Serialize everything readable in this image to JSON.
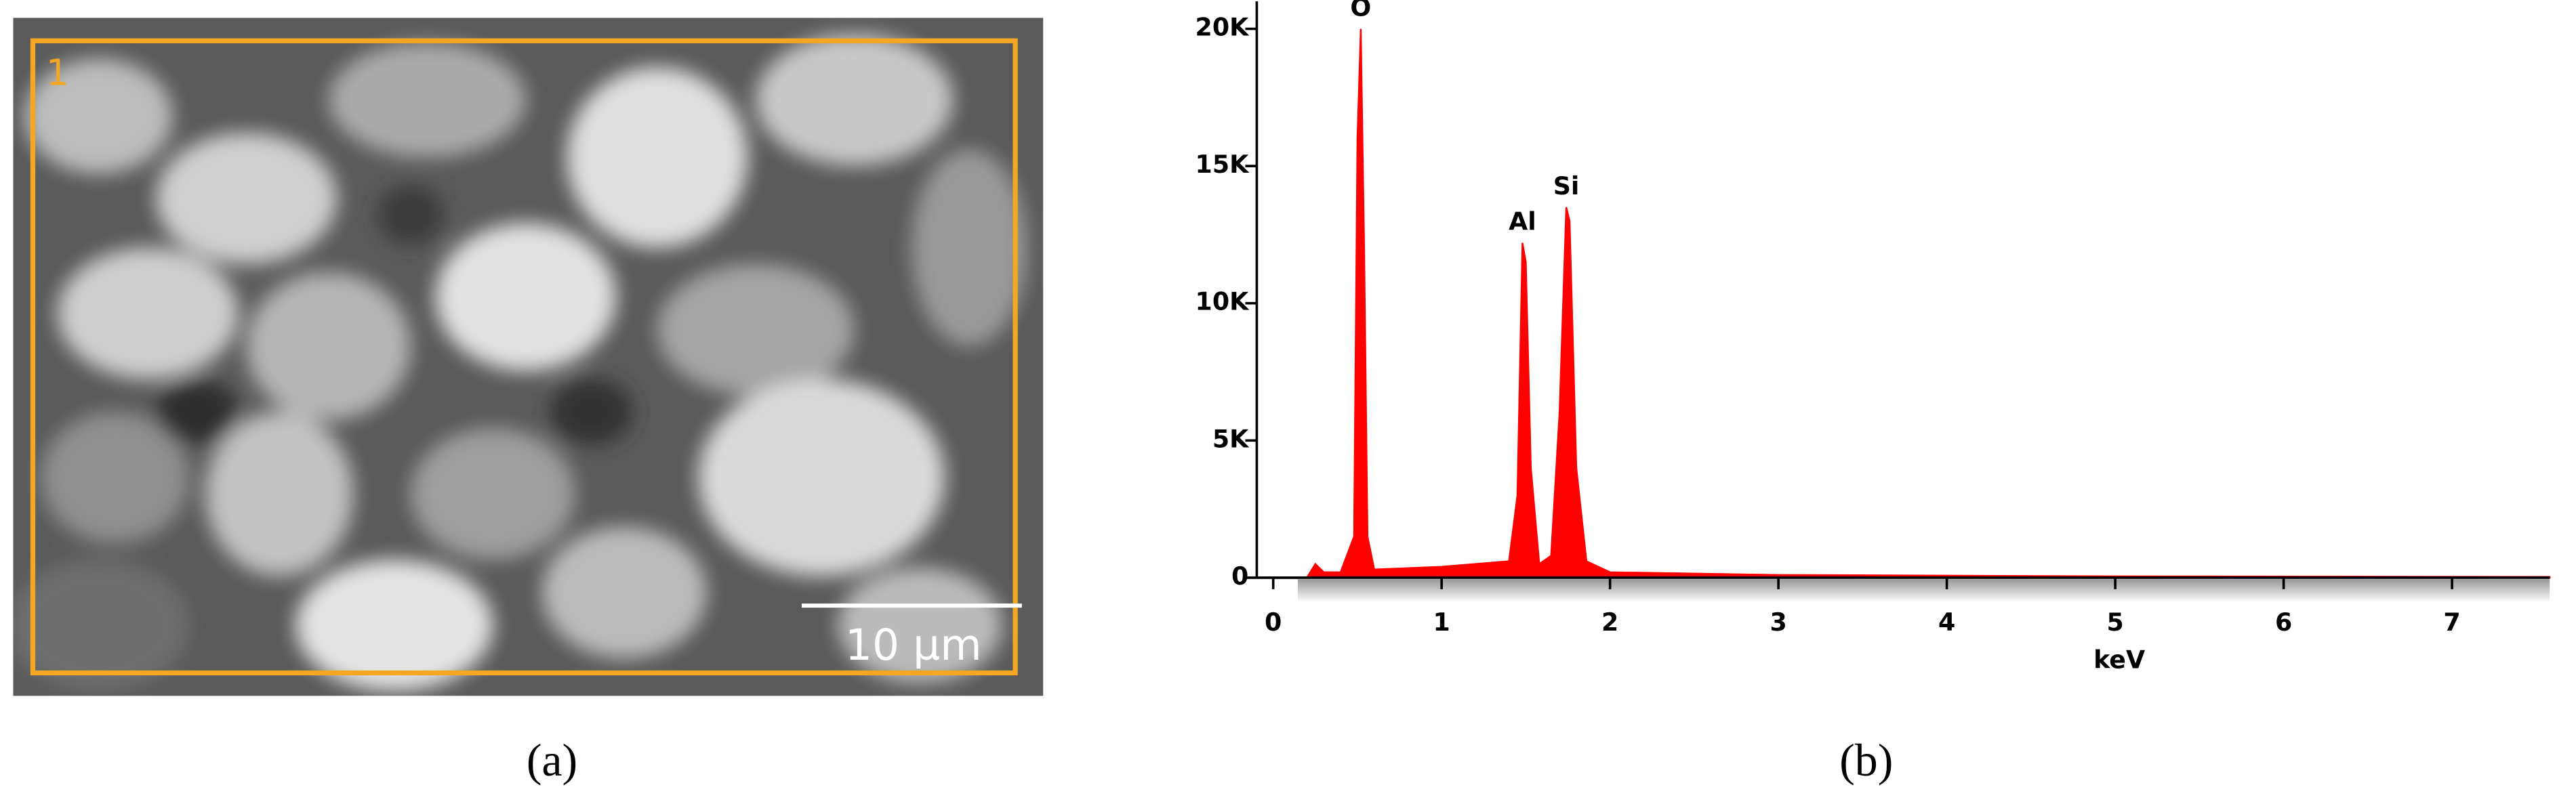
{
  "panel_a": {
    "label": "(a)",
    "region_label": "1",
    "scale_bar": "10 µm"
  },
  "panel_b": {
    "label": "(b)"
  },
  "chart_data": {
    "type": "area",
    "xlabel": "keV",
    "color": "#ff0000",
    "x": [
      0.2,
      0.25,
      0.3,
      0.4,
      0.48,
      0.5,
      0.52,
      0.54,
      0.56,
      0.6,
      1.0,
      1.4,
      1.45,
      1.48,
      1.5,
      1.53,
      1.58,
      1.65,
      1.7,
      1.74,
      1.76,
      1.8,
      1.86,
      2.0,
      3.0,
      5.0,
      7.58
    ],
    "values": [
      0,
      500,
      200,
      200,
      1500,
      16000,
      20000,
      12000,
      1500,
      300,
      400,
      600,
      3000,
      12200,
      11500,
      4000,
      500,
      800,
      6000,
      13500,
      13000,
      4000,
      600,
      200,
      100,
      50,
      30
    ],
    "xlim": [
      0,
      7.58
    ],
    "ylim": [
      0,
      21000
    ],
    "xticks": [
      0,
      1,
      2,
      3,
      4,
      5,
      6,
      7
    ],
    "yticks": [
      0,
      {
        "value": 5000,
        "label": "5K"
      },
      {
        "value": 10000,
        "label": "10K"
      },
      {
        "value": 15000,
        "label": "15K"
      },
      {
        "value": 20000,
        "label": "20K"
      }
    ],
    "annotations": [
      {
        "text": "O",
        "x": 0.52
      },
      {
        "text": "Al",
        "x": 1.48
      },
      {
        "text": "Si",
        "x": 1.74
      }
    ]
  }
}
